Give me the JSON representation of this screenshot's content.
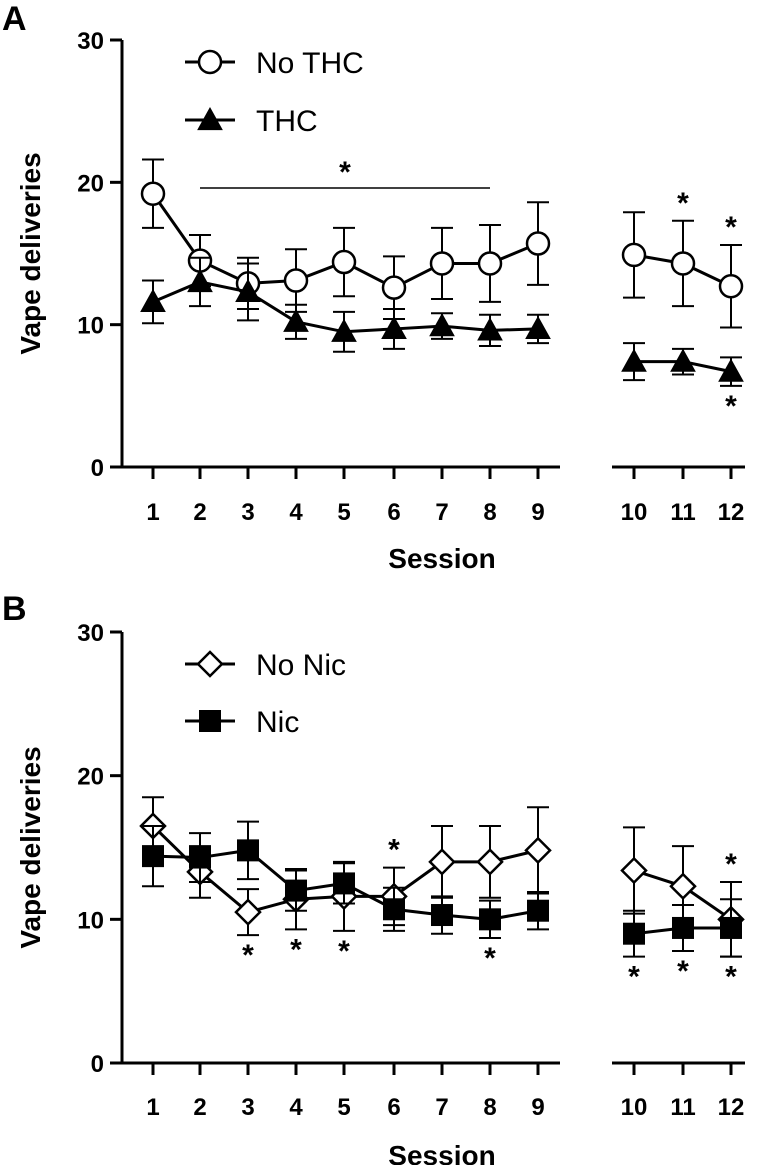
{
  "chart_data": [
    {
      "panel_label": "A",
      "type": "line",
      "xlabel": "Session",
      "ylabel": "Vape deliveries",
      "ylim": [
        0,
        30
      ],
      "yticks": [
        "0",
        "10",
        "20",
        "30"
      ],
      "x": [
        "1",
        "2",
        "3",
        "4",
        "5",
        "6",
        "7",
        "8",
        "9",
        "10",
        "11",
        "12"
      ],
      "gap_after": "9",
      "grid": false,
      "legend_position": "top-left",
      "series": [
        {
          "name": "No THC",
          "marker": "open-circle",
          "values": [
            19.2,
            14.5,
            12.9,
            13.1,
            14.4,
            12.6,
            14.3,
            14.3,
            15.7,
            14.9,
            14.3,
            12.7
          ],
          "error": [
            2.4,
            1.8,
            1.8,
            2.2,
            2.4,
            2.2,
            2.5,
            2.7,
            2.9,
            3.0,
            3.0,
            2.9
          ]
        },
        {
          "name": "THC",
          "marker": "filled-triangle",
          "values": [
            11.6,
            13.0,
            12.3,
            10.2,
            9.5,
            9.7,
            9.9,
            9.6,
            9.7,
            7.4,
            7.4,
            6.7
          ],
          "error": [
            1.5,
            1.7,
            2.0,
            1.2,
            1.4,
            1.4,
            0.9,
            1.1,
            1.0,
            1.3,
            0.9,
            1.0
          ]
        }
      ],
      "annotations": [
        {
          "type": "bracket",
          "from": "2",
          "to": "8",
          "y": 19.6,
          "text": "*"
        },
        {
          "x": "11",
          "series": "No THC",
          "position": "above",
          "text": "*"
        },
        {
          "x": "12",
          "series": "No THC",
          "position": "above",
          "text": "*"
        },
        {
          "x": "12",
          "series": "THC",
          "position": "below",
          "text": "*"
        }
      ]
    },
    {
      "panel_label": "B",
      "type": "line",
      "xlabel": "Session",
      "ylabel": "Vape deliveries",
      "ylim": [
        0,
        30
      ],
      "yticks": [
        "0",
        "10",
        "20",
        "30"
      ],
      "x": [
        "1",
        "2",
        "3",
        "4",
        "5",
        "6",
        "7",
        "8",
        "9",
        "10",
        "11",
        "12"
      ],
      "gap_after": "9",
      "grid": false,
      "legend_position": "top-left",
      "series": [
        {
          "name": "No Nic",
          "marker": "open-diamond",
          "values": [
            16.5,
            13.3,
            10.5,
            11.4,
            11.6,
            11.6,
            14.0,
            14.0,
            14.8,
            13.4,
            12.3,
            10.0
          ],
          "error": [
            2.0,
            1.8,
            1.6,
            2.1,
            2.4,
            2.0,
            2.5,
            2.5,
            3.0,
            3.0,
            2.8,
            2.6
          ]
        },
        {
          "name": "Nic",
          "marker": "filled-square",
          "values": [
            14.4,
            14.3,
            14.8,
            12.0,
            12.5,
            10.7,
            10.3,
            10.0,
            10.6,
            9.0,
            9.4,
            9.4
          ],
          "error": [
            2.1,
            1.7,
            2.0,
            1.4,
            1.4,
            1.5,
            1.3,
            1.3,
            1.3,
            1.6,
            1.6,
            2.0
          ]
        }
      ],
      "annotations": [
        {
          "x": "3",
          "series": "No Nic",
          "position": "below",
          "text": "*"
        },
        {
          "x": "4",
          "series": "No Nic",
          "position": "below",
          "text": "*"
        },
        {
          "x": "5",
          "series": "No Nic",
          "position": "below",
          "text": "*"
        },
        {
          "x": "6",
          "series": "No Nic",
          "position": "above",
          "text": "*"
        },
        {
          "x": "8",
          "series": "Nic",
          "position": "below",
          "text": "*"
        },
        {
          "x": "10",
          "series": "Nic",
          "position": "below",
          "text": "*"
        },
        {
          "x": "11",
          "series": "Nic",
          "position": "below",
          "text": "*"
        },
        {
          "x": "12",
          "series": "No Nic",
          "position": "above",
          "text": "*"
        },
        {
          "x": "12",
          "series": "Nic",
          "position": "below",
          "text": "*"
        }
      ]
    }
  ]
}
